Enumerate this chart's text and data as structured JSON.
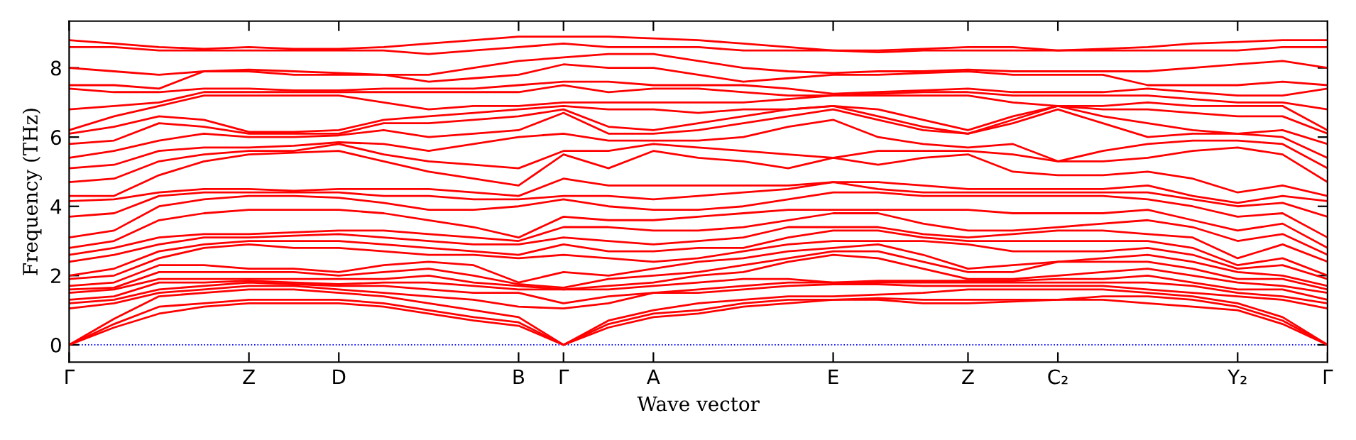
{
  "chart_data": {
    "type": "line",
    "xlabel": "Wave vector",
    "ylabel": "Frequency (THz)",
    "categories": [
      "Γ",
      null,
      null,
      null,
      "Z",
      null,
      "D",
      null,
      null,
      null,
      "B",
      "Γ",
      null,
      "A",
      null,
      null,
      null,
      "E",
      null,
      null,
      "Z",
      null,
      "C₂",
      null,
      null,
      null,
      "Y₂",
      null,
      "Γ"
    ],
    "ylim": [
      -0.5,
      9.35
    ],
    "yticks": [
      0,
      2,
      4,
      6,
      8
    ],
    "grid": false,
    "legend": false,
    "marker": "none",
    "line_style": "solid",
    "ref_lines": [
      {
        "axis": "y",
        "value": 0,
        "color": "#0000ff",
        "line_style": "dotted"
      }
    ],
    "series": [
      {
        "color": "#ff0000",
        "values": [
          0,
          0.5,
          0.9,
          1.1,
          1.2,
          1.2,
          1.2,
          1.1,
          0.9,
          0.7,
          0.55,
          0,
          0.5,
          0.8,
          0.9,
          1.1,
          1.2,
          1.3,
          1.3,
          1.2,
          1.2,
          1.25,
          1.3,
          1.3,
          1.2,
          1.1,
          1.0,
          0.6,
          0
        ]
      },
      {
        "color": "#ff0000",
        "values": [
          0,
          0.6,
          1.1,
          1.2,
          1.3,
          1.3,
          1.3,
          1.2,
          1.0,
          0.8,
          0.65,
          0,
          0.6,
          0.9,
          1.0,
          1.2,
          1.3,
          1.3,
          1.35,
          1.3,
          1.3,
          1.3,
          1.3,
          1.4,
          1.4,
          1.3,
          1.1,
          0.7,
          0
        ]
      },
      {
        "color": "#ff0000",
        "values": [
          0,
          0.75,
          1.4,
          1.5,
          1.6,
          1.6,
          1.5,
          1.4,
          1.2,
          1.0,
          0.8,
          0,
          0.7,
          1.0,
          1.2,
          1.3,
          1.4,
          1.4,
          1.45,
          1.5,
          1.6,
          1.6,
          1.6,
          1.6,
          1.5,
          1.4,
          1.2,
          0.8,
          0
        ]
      },
      {
        "color": "#ff0000",
        "values": [
          1.05,
          1.2,
          1.5,
          1.6,
          1.7,
          1.7,
          1.6,
          1.5,
          1.4,
          1.3,
          1.1,
          1.05,
          1.2,
          1.5,
          1.5,
          1.6,
          1.7,
          1.75,
          1.75,
          1.7,
          1.7,
          1.7,
          1.7,
          1.7,
          1.6,
          1.5,
          1.4,
          1.3,
          1.05
        ]
      },
      {
        "color": "#ff0000",
        "values": [
          1.2,
          1.3,
          1.6,
          1.7,
          1.8,
          1.75,
          1.7,
          1.7,
          1.6,
          1.5,
          1.5,
          1.2,
          1.4,
          1.5,
          1.6,
          1.7,
          1.8,
          1.8,
          1.8,
          1.8,
          1.8,
          1.8,
          1.8,
          1.8,
          1.8,
          1.7,
          1.5,
          1.4,
          1.2
        ]
      },
      {
        "color": "#ff0000",
        "values": [
          1.3,
          1.4,
          1.8,
          1.8,
          1.85,
          1.8,
          1.75,
          1.8,
          1.8,
          1.7,
          1.6,
          1.6,
          1.6,
          1.7,
          1.8,
          1.9,
          1.9,
          1.8,
          1.85,
          1.85,
          1.85,
          1.85,
          1.9,
          1.9,
          2.0,
          1.8,
          1.6,
          1.6,
          1.3
        ]
      },
      {
        "color": "#ff0000",
        "values": [
          1.5,
          1.6,
          1.9,
          1.9,
          1.9,
          1.9,
          1.9,
          1.9,
          2.0,
          1.8,
          1.7,
          1.6,
          1.7,
          1.8,
          2.0,
          2.1,
          2.4,
          2.6,
          2.5,
          2.2,
          1.9,
          1.9,
          2.0,
          2.1,
          2.2,
          2.0,
          1.8,
          1.7,
          1.5
        ]
      },
      {
        "color": "#ff0000",
        "values": [
          1.6,
          1.65,
          2.1,
          2.1,
          2.1,
          2.1,
          2.0,
          2.1,
          2.2,
          2.0,
          1.75,
          1.65,
          1.9,
          2.0,
          2.1,
          2.3,
          2.5,
          2.7,
          2.7,
          2.4,
          2.1,
          2.1,
          2.4,
          2.4,
          2.4,
          2.2,
          1.9,
          1.9,
          1.6
        ]
      },
      {
        "color": "#ff0000",
        "values": [
          1.7,
          1.8,
          2.3,
          2.3,
          2.2,
          2.2,
          2.1,
          2.3,
          2.4,
          2.3,
          1.8,
          2.1,
          2.0,
          2.2,
          2.4,
          2.5,
          2.7,
          2.8,
          2.9,
          2.6,
          2.2,
          2.3,
          2.4,
          2.5,
          2.6,
          2.4,
          2.1,
          2.0,
          1.7
        ]
      },
      {
        "color": "#ff0000",
        "values": [
          1.9,
          2.0,
          2.5,
          2.8,
          2.9,
          2.8,
          2.8,
          2.7,
          2.6,
          2.6,
          2.5,
          2.6,
          2.5,
          2.4,
          2.5,
          2.7,
          2.9,
          3.0,
          3.0,
          3.0,
          2.9,
          2.7,
          2.7,
          2.7,
          2.8,
          2.6,
          2.2,
          2.3,
          1.9
        ]
      },
      {
        "color": "#ff0000",
        "values": [
          2.0,
          2.2,
          2.7,
          2.9,
          3.0,
          3.0,
          3.0,
          2.9,
          2.8,
          2.7,
          2.6,
          2.9,
          2.7,
          2.7,
          2.8,
          2.8,
          3.1,
          3.3,
          3.3,
          3.1,
          3.0,
          3.0,
          3.0,
          3.0,
          3.0,
          2.8,
          2.3,
          2.5,
          2.0
        ]
      },
      {
        "color": "#ff0000",
        "values": [
          2.4,
          2.6,
          2.9,
          3.1,
          3.1,
          3.15,
          3.2,
          3.1,
          3.0,
          2.9,
          2.9,
          3.1,
          3.0,
          2.9,
          3.0,
          3.1,
          3.4,
          3.4,
          3.4,
          3.2,
          3.1,
          3.2,
          3.3,
          3.3,
          3.2,
          3.1,
          2.5,
          2.9,
          2.4
        ]
      },
      {
        "color": "#ff0000",
        "values": [
          2.6,
          2.8,
          3.1,
          3.2,
          3.2,
          3.25,
          3.3,
          3.3,
          3.2,
          3.1,
          3.0,
          3.4,
          3.4,
          3.3,
          3.3,
          3.4,
          3.6,
          3.8,
          3.8,
          3.5,
          3.3,
          3.3,
          3.4,
          3.5,
          3.6,
          3.4,
          3.0,
          3.2,
          2.6
        ]
      },
      {
        "color": "#ff0000",
        "values": [
          2.8,
          3.0,
          3.6,
          3.8,
          3.9,
          3.9,
          3.9,
          3.8,
          3.6,
          3.4,
          3.1,
          3.7,
          3.6,
          3.6,
          3.7,
          3.8,
          3.9,
          3.9,
          3.9,
          3.9,
          3.9,
          3.8,
          3.8,
          3.8,
          3.9,
          3.6,
          3.3,
          3.5,
          2.8
        ]
      },
      {
        "color": "#ff0000",
        "values": [
          3.1,
          3.3,
          4.0,
          4.2,
          4.3,
          4.3,
          4.25,
          4.1,
          3.9,
          3.9,
          4.0,
          4.2,
          4.0,
          3.9,
          3.9,
          4.0,
          4.2,
          4.4,
          4.4,
          4.3,
          4.3,
          4.3,
          4.3,
          4.3,
          4.2,
          4.0,
          3.7,
          3.8,
          3.1
        ]
      },
      {
        "color": "#ff0000",
        "values": [
          3.7,
          3.8,
          4.3,
          4.4,
          4.4,
          4.4,
          4.4,
          4.3,
          4.3,
          4.2,
          4.2,
          4.3,
          4.3,
          4.2,
          4.3,
          4.4,
          4.5,
          4.7,
          4.5,
          4.4,
          4.4,
          4.4,
          4.4,
          4.4,
          4.4,
          4.2,
          4.0,
          4.1,
          3.7
        ]
      },
      {
        "color": "#ff0000",
        "values": [
          4.15,
          4.2,
          4.4,
          4.5,
          4.5,
          4.45,
          4.5,
          4.5,
          4.5,
          4.4,
          4.3,
          4.8,
          4.6,
          4.6,
          4.6,
          4.6,
          4.6,
          4.7,
          4.7,
          4.6,
          4.5,
          4.5,
          4.5,
          4.5,
          4.6,
          4.3,
          4.1,
          4.3,
          4.15
        ]
      },
      {
        "color": "#ff0000",
        "values": [
          4.3,
          4.3,
          4.9,
          5.3,
          5.5,
          5.55,
          5.6,
          5.3,
          5.0,
          4.8,
          4.6,
          5.5,
          5.1,
          5.6,
          5.4,
          5.3,
          5.1,
          5.4,
          5.2,
          5.4,
          5.5,
          5.0,
          4.9,
          4.9,
          5.0,
          4.8,
          4.4,
          4.6,
          4.3
        ]
      },
      {
        "color": "#ff0000",
        "values": [
          4.7,
          4.8,
          5.3,
          5.5,
          5.6,
          5.6,
          5.8,
          5.5,
          5.3,
          5.2,
          5.1,
          5.6,
          5.6,
          5.8,
          5.7,
          5.6,
          5.5,
          5.4,
          5.6,
          5.6,
          5.6,
          5.5,
          5.3,
          5.3,
          5.4,
          5.6,
          5.7,
          5.5,
          4.7
        ]
      },
      {
        "color": "#ff0000",
        "values": [
          5.1,
          5.2,
          5.6,
          5.7,
          5.7,
          5.75,
          5.85,
          5.8,
          5.6,
          5.8,
          6.0,
          6.1,
          5.9,
          5.9,
          5.9,
          6.0,
          6.3,
          6.5,
          6.0,
          5.8,
          5.7,
          5.8,
          5.3,
          5.6,
          5.8,
          5.9,
          5.9,
          5.8,
          5.1
        ]
      },
      {
        "color": "#ff0000",
        "values": [
          5.4,
          5.6,
          5.9,
          6.1,
          6.0,
          6.0,
          6.05,
          6.2,
          6.0,
          6.1,
          6.2,
          6.7,
          6.1,
          6.1,
          6.2,
          6.4,
          6.6,
          6.8,
          6.5,
          6.2,
          6.1,
          6.4,
          6.8,
          6.4,
          6.0,
          6.1,
          6.1,
          6.0,
          5.4
        ]
      },
      {
        "color": "#ff0000",
        "values": [
          5.8,
          5.9,
          6.4,
          6.3,
          6.1,
          6.1,
          6.1,
          6.4,
          6.4,
          6.5,
          6.6,
          6.8,
          6.3,
          6.2,
          6.4,
          6.6,
          6.8,
          6.9,
          6.6,
          6.3,
          6.1,
          6.5,
          6.9,
          6.6,
          6.4,
          6.2,
          6.1,
          6.2,
          5.8
        ]
      },
      {
        "color": "#ff0000",
        "values": [
          6.1,
          6.3,
          6.6,
          6.5,
          6.15,
          6.15,
          6.2,
          6.5,
          6.6,
          6.7,
          6.8,
          6.9,
          6.8,
          6.8,
          6.7,
          6.8,
          6.8,
          6.9,
          6.8,
          6.5,
          6.2,
          6.6,
          6.9,
          6.8,
          6.8,
          6.7,
          6.6,
          6.6,
          6.1
        ]
      },
      {
        "color": "#ff0000",
        "values": [
          6.2,
          6.6,
          6.9,
          7.2,
          7.2,
          7.2,
          7.2,
          7.0,
          6.8,
          6.9,
          6.9,
          7.0,
          7.0,
          7.0,
          7.0,
          7.0,
          7.1,
          7.2,
          7.2,
          7.2,
          7.2,
          7.0,
          6.9,
          6.9,
          7.0,
          6.9,
          6.9,
          6.9,
          6.2
        ]
      },
      {
        "color": "#ff0000",
        "values": [
          6.8,
          6.9,
          7.0,
          7.3,
          7.3,
          7.3,
          7.3,
          7.3,
          7.3,
          7.3,
          7.3,
          7.5,
          7.3,
          7.4,
          7.4,
          7.3,
          7.2,
          7.2,
          7.25,
          7.3,
          7.3,
          7.2,
          7.2,
          7.2,
          7.2,
          7.1,
          7.0,
          7.0,
          6.8
        ]
      },
      {
        "color": "#ff0000",
        "values": [
          7.4,
          7.3,
          7.3,
          7.4,
          7.4,
          7.35,
          7.35,
          7.4,
          7.4,
          7.4,
          7.5,
          7.6,
          7.6,
          7.5,
          7.5,
          7.5,
          7.4,
          7.25,
          7.3,
          7.35,
          7.4,
          7.3,
          7.3,
          7.3,
          7.4,
          7.3,
          7.2,
          7.2,
          7.4
        ]
      },
      {
        "color": "#ff0000",
        "values": [
          7.5,
          7.5,
          7.4,
          7.9,
          7.9,
          7.8,
          7.8,
          7.8,
          7.6,
          7.7,
          7.8,
          8.1,
          8.0,
          8.0,
          7.8,
          7.6,
          7.7,
          7.8,
          7.8,
          7.85,
          7.9,
          7.8,
          7.8,
          7.8,
          7.5,
          7.5,
          7.5,
          7.6,
          7.5
        ]
      },
      {
        "color": "#ff0000",
        "values": [
          8.0,
          7.9,
          7.8,
          7.9,
          7.95,
          7.9,
          7.85,
          7.8,
          7.8,
          8.0,
          8.2,
          8.3,
          8.4,
          8.4,
          8.2,
          8.0,
          7.9,
          7.85,
          7.9,
          7.9,
          7.95,
          7.9,
          7.9,
          7.9,
          7.9,
          8.0,
          8.1,
          8.2,
          8.0
        ]
      },
      {
        "color": "#ff0000",
        "values": [
          8.6,
          8.6,
          8.5,
          8.5,
          8.5,
          8.5,
          8.5,
          8.5,
          8.4,
          8.5,
          8.6,
          8.7,
          8.6,
          8.6,
          8.6,
          8.5,
          8.5,
          8.5,
          8.45,
          8.5,
          8.5,
          8.5,
          8.5,
          8.5,
          8.5,
          8.5,
          8.5,
          8.6,
          8.6
        ]
      },
      {
        "color": "#ff0000",
        "values": [
          8.8,
          8.7,
          8.6,
          8.55,
          8.6,
          8.55,
          8.55,
          8.6,
          8.7,
          8.8,
          8.9,
          8.9,
          8.9,
          8.85,
          8.8,
          8.7,
          8.6,
          8.5,
          8.5,
          8.55,
          8.6,
          8.6,
          8.5,
          8.55,
          8.6,
          8.7,
          8.75,
          8.8,
          8.8
        ]
      }
    ]
  }
}
